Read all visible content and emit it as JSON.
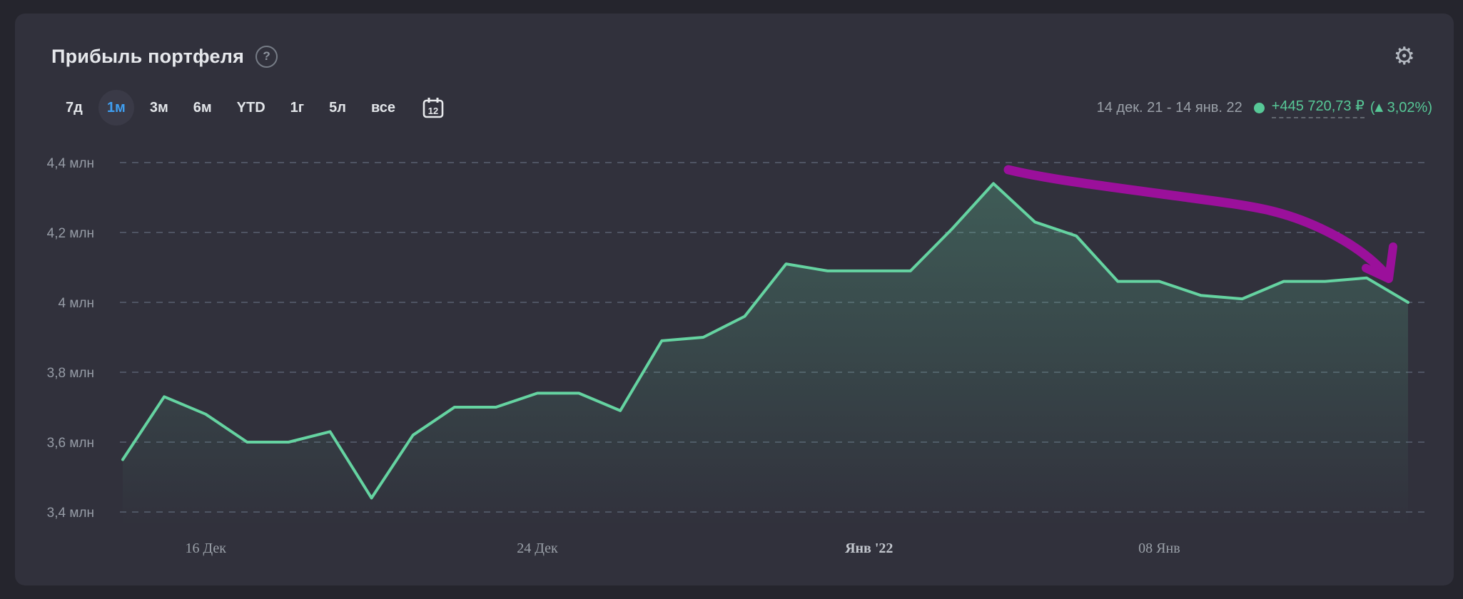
{
  "header": {
    "title": "Прибыль портфеля",
    "help_icon": "question-circle-icon",
    "help_glyph": "?",
    "settings_icon": "gear-icon",
    "settings_glyph": "⚙"
  },
  "range_selector": {
    "options": [
      {
        "label": "7д",
        "selected": false
      },
      {
        "label": "1м",
        "selected": true
      },
      {
        "label": "3м",
        "selected": false
      },
      {
        "label": "6м",
        "selected": false
      },
      {
        "label": "YTD",
        "selected": false
      },
      {
        "label": "1г",
        "selected": false
      },
      {
        "label": "5л",
        "selected": false
      },
      {
        "label": "все",
        "selected": false
      }
    ],
    "selected_color": "#3f9ef0",
    "calendar_icon": "calendar-icon",
    "calendar_day": "12"
  },
  "summary": {
    "date_range": "14 дек. 21 - 14 янв. 22",
    "profit_amount": "+445 720,73 ₽",
    "paren_open": "(",
    "up_triangle": "▲",
    "profit_percent": "3,02%",
    "paren_close": ")",
    "positive_color": "#57c897"
  },
  "chart_data": {
    "type": "area",
    "title": "Прибыль портфеля",
    "unit": "млн ₽",
    "x_dates": [
      "14 дек 21",
      "15 дек 21",
      "16 дек 21",
      "17 дек 21",
      "18 дек 21",
      "19 дек 21",
      "20 дек 21",
      "21 дек 21",
      "22 дек 21",
      "23 дек 21",
      "24 дек 21",
      "25 дек 21",
      "26 дек 21",
      "27 дек 21",
      "28 дек 21",
      "29 дек 21",
      "30 дек 21",
      "31 дек 21",
      "01 янв 22",
      "02 янв 22",
      "03 янв 22",
      "04 янв 22",
      "05 янв 22",
      "06 янв 22",
      "07 янв 22",
      "08 янв 22",
      "09 янв 22",
      "10 янв 22",
      "11 янв 22",
      "12 янв 22",
      "13 янв 22",
      "14 янв 22"
    ],
    "values": [
      3.55,
      3.73,
      3.68,
      3.6,
      3.6,
      3.63,
      3.44,
      3.62,
      3.7,
      3.7,
      3.74,
      3.74,
      3.69,
      3.89,
      3.9,
      3.96,
      4.11,
      4.09,
      4.09,
      4.09,
      4.21,
      4.34,
      4.23,
      4.19,
      4.06,
      4.06,
      4.02,
      4.01,
      4.06,
      4.06,
      4.07,
      4.0
    ],
    "ylim": [
      3.4,
      4.4
    ],
    "yticks": [
      {
        "value": 4.4,
        "label": "4,4 млн"
      },
      {
        "value": 4.2,
        "label": "4,2 млн"
      },
      {
        "value": 4.0,
        "label": "4 млн"
      },
      {
        "value": 3.8,
        "label": "3,8 млн"
      },
      {
        "value": 3.6,
        "label": "3,6 млн"
      },
      {
        "value": 3.4,
        "label": "3,4 млн"
      }
    ],
    "xticks": [
      {
        "index": 2,
        "label": "16 Дек",
        "bold": false
      },
      {
        "index": 10,
        "label": "24 Дек",
        "bold": false
      },
      {
        "index": 18,
        "label": "Янв '22",
        "bold": true
      },
      {
        "index": 25,
        "label": "08 Янв",
        "bold": false
      }
    ],
    "line_color": "#65d3a1",
    "fill_color": "#65d3a1",
    "grid": true,
    "legend": false
  },
  "annotation": {
    "type": "hand-drawn-arrow",
    "direction": "down-right",
    "color": "#9b109b"
  }
}
